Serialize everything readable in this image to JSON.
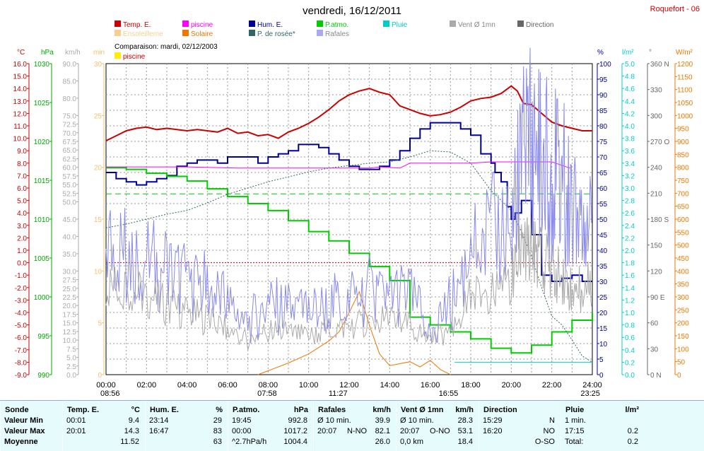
{
  "header": {
    "title": "vendredi, 16/12/2011",
    "station": "Roquefort - 06",
    "comparison": "Comparaison: mardi, 02/12/2003"
  },
  "legend": [
    {
      "label": "Temp. E.",
      "color": "#cc0000"
    },
    {
      "label": "piscine",
      "color": "#ff00ff"
    },
    {
      "label": "Hum. E.",
      "color": "#000099"
    },
    {
      "label": "P.atmo.",
      "color": "#00cc00"
    },
    {
      "label": "Pluie",
      "color": "#00cccc"
    },
    {
      "label": "Vent Ø 1mn",
      "color": "#aaaaaa"
    },
    {
      "label": "Direction",
      "color": "#666666"
    },
    {
      "label": "Ensoleilleme",
      "color": "#f5d090"
    },
    {
      "label": "Solaire",
      "color": "#ee7700"
    },
    {
      "label": "P. de rosée*",
      "color": "#336666"
    },
    {
      "label": "Rafales",
      "color": "#aaaaee"
    }
  ],
  "legend_compare": {
    "label": "piscine",
    "color": "#ffee00"
  },
  "axes": {
    "units": {
      "temp": "°C",
      "pressure": "hPa",
      "speed": "km/h",
      "minutes": "min",
      "percent": "%",
      "rain": "l/m²",
      "direction": "°",
      "solar": "W/m²"
    },
    "temp_ticks": [
      "16.0",
      "15.0",
      "14.0",
      "13.0",
      "12.0",
      "11.0",
      "10.0",
      "9.0",
      "8.0",
      "7.0",
      "6.0",
      "5.0",
      "4.0",
      "3.0",
      "2.0",
      "1.0",
      "0.0",
      "-1.0",
      "-2.0",
      "-3.0",
      "-4.0",
      "-5.0",
      "-6.0",
      "-7.0",
      "-8.0",
      "-9.0"
    ],
    "pressure_ticks": [
      "1030",
      "1025",
      "1020",
      "1015",
      "1010",
      "1005",
      "1000",
      "995",
      "990"
    ],
    "speed_ticks": [
      "90.0",
      "85.0",
      "80.0",
      "75.0",
      "72.5",
      "70.0",
      "67.5",
      "65.0",
      "62.5",
      "60.0",
      "57.5",
      "55.0",
      "52.5",
      "50.0",
      "45.0",
      "40.0",
      "35.0",
      "30.0",
      "27.5",
      "25.0",
      "22.5",
      "20.0",
      "17.5",
      "15.0",
      "12.5",
      "10.0",
      "7.5",
      "5.0",
      "2.5",
      "0.0"
    ],
    "minutes_ticks": [
      "30",
      "25",
      "20",
      "15",
      "10",
      "5",
      "0"
    ],
    "percent_ticks": [
      "100",
      "95",
      "90",
      "85",
      "80",
      "75",
      "70",
      "65",
      "60",
      "55",
      "50",
      "45",
      "40",
      "35",
      "30",
      "25",
      "20",
      "15",
      "10",
      "5",
      "0"
    ],
    "rain_ticks": [
      "5.0",
      "4.8",
      "4.6",
      "4.4",
      "4.2",
      "4.0",
      "3.8",
      "3.6",
      "3.4",
      "3.2",
      "3.0",
      "2.8",
      "2.6",
      "2.4",
      "2.2",
      "2.0",
      "1.8",
      "1.6",
      "1.4",
      "1.2",
      "1.0",
      "0.8",
      "0.6",
      "0.4",
      "0.2",
      "0.0"
    ],
    "direction_ticks": [
      "360 N",
      "330",
      "300",
      "270 O",
      "240",
      "210",
      "180 S",
      "150",
      "120",
      "90 E",
      "60",
      "30",
      "0 N"
    ],
    "solar_ticks": [
      "1200",
      "1150",
      "1100",
      "1050",
      "1000",
      "950",
      "900",
      "850",
      "800",
      "750",
      "700",
      "650",
      "600",
      "550",
      "500",
      "450",
      "400",
      "350",
      "300",
      "250",
      "200",
      "150",
      "100",
      "50",
      "0"
    ],
    "x_ticks": [
      "00:00",
      "02:00",
      "04:00",
      "06:00",
      "08:00",
      "10:00",
      "12:00",
      "14:00",
      "16:00",
      "18:00",
      "20:00",
      "22:00",
      "24:00"
    ],
    "sun_times": [
      "08:56",
      "07:58",
      "11:27",
      "16:55",
      "23:25"
    ]
  },
  "chart_data": {
    "type": "line",
    "x_unit": "hour",
    "series": [
      {
        "name": "Temp. E.",
        "unit": "°C",
        "color": "#cc0000",
        "x": [
          0,
          0.5,
          1,
          1.5,
          2,
          2.5,
          3,
          3.5,
          4,
          4.5,
          5,
          5.5,
          6,
          6.5,
          7,
          7.5,
          8,
          8.5,
          9,
          9.5,
          10,
          10.5,
          11,
          11.5,
          12,
          12.5,
          13,
          13.5,
          14,
          14.5,
          15,
          15.5,
          16,
          16.5,
          17,
          17.5,
          18,
          18.5,
          19,
          19.5,
          20,
          20.3,
          20.6,
          21,
          21.5,
          22,
          22.5,
          23,
          23.5,
          24
        ],
        "values": [
          9.8,
          10.2,
          10.6,
          10.8,
          10.9,
          10.7,
          10.8,
          10.7,
          10.6,
          10.7,
          10.6,
          10.5,
          10.8,
          10.4,
          10.5,
          10.2,
          10.3,
          10.0,
          10.5,
          10.8,
          11.2,
          11.7,
          12.3,
          13.0,
          13.5,
          13.8,
          14.0,
          13.7,
          13.5,
          12.6,
          12.3,
          12.0,
          11.8,
          11.9,
          12.1,
          12.5,
          13.0,
          13.2,
          13.3,
          13.6,
          14.2,
          13.8,
          12.8,
          12.7,
          12.0,
          11.3,
          11.0,
          10.8,
          10.6,
          10.6
        ]
      },
      {
        "name": "Hum. E.",
        "unit": "%",
        "color": "#000099",
        "x": [
          0,
          0.5,
          1,
          1.5,
          2,
          2.5,
          3,
          3.5,
          4,
          4.5,
          5,
          5.5,
          6,
          6.5,
          7,
          7.5,
          8,
          8.5,
          9,
          9.5,
          10,
          10.5,
          11,
          11.5,
          12,
          12.5,
          13,
          13.5,
          14,
          14.5,
          15,
          15.5,
          16,
          16.5,
          17,
          17.5,
          18,
          18.5,
          19,
          19.2,
          19.5,
          19.8,
          20,
          20.2,
          20.5,
          21,
          21.5,
          22,
          22.5,
          23,
          23.5,
          24
        ],
        "values": [
          65,
          63,
          62,
          61,
          62,
          63,
          64,
          67,
          68,
          69,
          69,
          68,
          70,
          70,
          70,
          68,
          70,
          71,
          72,
          74,
          74,
          73,
          71,
          69,
          67,
          66,
          66,
          67,
          69,
          72,
          76,
          79,
          81,
          81,
          81,
          79,
          77,
          71,
          68,
          65,
          62,
          54,
          50,
          52,
          56,
          45,
          32,
          30,
          31,
          32,
          30,
          30
        ]
      },
      {
        "name": "P.atmo.",
        "unit": "hPa",
        "color": "#00cc00",
        "x": [
          0,
          1,
          2,
          3,
          4,
          5,
          6,
          7,
          8,
          9,
          10,
          11,
          12,
          13,
          14,
          15,
          16,
          17,
          18,
          19,
          20,
          21,
          22,
          23,
          24
        ],
        "values": [
          1016.6,
          1016.4,
          1015.9,
          1015.5,
          1014.9,
          1013.9,
          1012.9,
          1012.0,
          1011.1,
          1009.8,
          1008.4,
          1007.2,
          1005.6,
          1003.9,
          1002.1,
          997.4,
          996.4,
          995.5,
          994.6,
          993.4,
          992.8,
          993.8,
          995.5,
          997.0,
          998.0
        ]
      },
      {
        "name": "piscine",
        "unit": "°C",
        "color": "#ff00ff",
        "x": [
          0,
          4,
          6.5,
          13,
          13.5,
          14.5,
          15,
          16,
          17,
          18,
          19,
          20,
          21,
          22,
          22.9
        ],
        "values": [
          7.7,
          7.7,
          7.6,
          7.6,
          7.7,
          7.6,
          8.0,
          8.0,
          8.0,
          8.0,
          8.1,
          8.1,
          8.1,
          8.1,
          7.6
        ]
      },
      {
        "name": "P. de rosée*",
        "unit": "°C",
        "color": "#336666",
        "x": [
          0,
          1,
          2,
          3,
          4,
          5,
          6,
          7,
          8,
          9,
          10,
          11,
          12,
          13,
          14,
          15,
          16,
          17,
          18,
          19,
          20,
          20.5,
          21,
          21.5,
          22,
          22.5,
          23,
          23.5,
          24
        ],
        "values": [
          2.8,
          3.1,
          3.5,
          3.9,
          4.2,
          4.8,
          5.5,
          6.0,
          6.5,
          6.9,
          7.3,
          7.6,
          7.8,
          8.0,
          8.1,
          8.5,
          9.0,
          8.9,
          8.0,
          5.8,
          4.2,
          2.5,
          0.5,
          -2.0,
          -4.3,
          -5.0,
          -6.2,
          -7.5,
          -8.0
        ]
      },
      {
        "name": "Solaire",
        "unit": "W/m²",
        "color": "#ee7700",
        "x": [
          7.5,
          8,
          9,
          10,
          11,
          11.5,
          12,
          12.5,
          13,
          13.5,
          14,
          15,
          15.5,
          16,
          16.5,
          17
        ],
        "values": [
          0,
          15,
          45,
          80,
          130,
          165,
          240,
          320,
          190,
          80,
          35,
          50,
          30,
          55,
          20,
          0
        ]
      },
      {
        "name": "Rafales",
        "unit": "km/h",
        "color": "#8888ee",
        "x": [
          0,
          1,
          2,
          3,
          4,
          5,
          6,
          7,
          8,
          9,
          10,
          11,
          12,
          13,
          14,
          15,
          16,
          17,
          18,
          19,
          20,
          20.5,
          21,
          21.5,
          22,
          22.5,
          23,
          23.5,
          24
        ],
        "values": [
          38,
          36,
          33,
          30,
          27,
          25,
          20,
          15,
          20,
          19,
          18,
          20,
          22,
          24,
          25,
          22,
          15,
          20,
          35,
          40,
          45,
          60,
          70,
          62,
          58,
          57,
          50,
          48,
          52
        ]
      },
      {
        "name": "Vent Ø 1mn",
        "unit": "km/h",
        "color": "#aaaaaa",
        "x": [
          0,
          1,
          2,
          3,
          4,
          5,
          6,
          7,
          8,
          9,
          10,
          11,
          12,
          13,
          14,
          15,
          16,
          17,
          18,
          19,
          20,
          20.5,
          21,
          21.5,
          22,
          22.5,
          23,
          23.5,
          24
        ],
        "values": [
          26,
          25,
          23,
          20,
          18,
          16,
          13,
          10,
          13,
          12,
          11,
          13,
          14,
          15,
          16,
          14,
          10,
          13,
          22,
          25,
          28,
          35,
          36,
          34,
          30,
          28,
          25,
          24,
          28
        ]
      },
      {
        "name": "Pluie",
        "unit": "l/m²",
        "color": "#00cccc",
        "x": [
          17.2,
          24
        ],
        "values": [
          0.2,
          0.2
        ]
      }
    ],
    "stats": {
      "columns": [
        {
          "title": "Sonde"
        },
        {
          "title": "Temp. E.",
          "unit": "°C"
        },
        {
          "title": "Hum. E.",
          "unit": "%"
        },
        {
          "title": "P.atmo.",
          "unit": "hPa"
        },
        {
          "title": "Rafales",
          "unit": "km/h"
        },
        {
          "title": "Vent Ø 1mn",
          "unit": "km/h"
        },
        {
          "title": "Direction"
        },
        {
          "title": "Pluie",
          "unit": "l/m²"
        }
      ],
      "rows": [
        {
          "label": "Valeur Min",
          "cells": [
            [
              "00:01",
              "9.4"
            ],
            [
              "23:14",
              "29"
            ],
            [
              "19:45",
              "992.8"
            ],
            [
              "Ø 10 min.",
              "",
              "39.9"
            ],
            [
              "Ø 10 min.",
              "",
              "28.3"
            ],
            [
              "15:29",
              "N"
            ],
            [
              "1 min.",
              ""
            ]
          ]
        },
        {
          "label": "Valeur Max",
          "cells": [
            [
              "20:01",
              "14.3"
            ],
            [
              "16:47",
              "83"
            ],
            [
              "00:00",
              "1017.2"
            ],
            [
              "20:07",
              "N-NO",
              "82.1"
            ],
            [
              "20:07",
              "O-NO",
              "53.1"
            ],
            [
              "16:20",
              "NO"
            ],
            [
              "17:15",
              "0.2"
            ]
          ]
        },
        {
          "label": "Moyenne",
          "cells": [
            [
              "",
              "11.52"
            ],
            [
              "",
              "63"
            ],
            [
              "^2.7hPa/h",
              "1004.4"
            ],
            [
              "",
              "",
              "26.0"
            ],
            [
              "0,0 km",
              "",
              "18.4"
            ],
            [
              "",
              "O-SO"
            ],
            [
              "Total:",
              "0.2"
            ]
          ]
        }
      ]
    }
  }
}
